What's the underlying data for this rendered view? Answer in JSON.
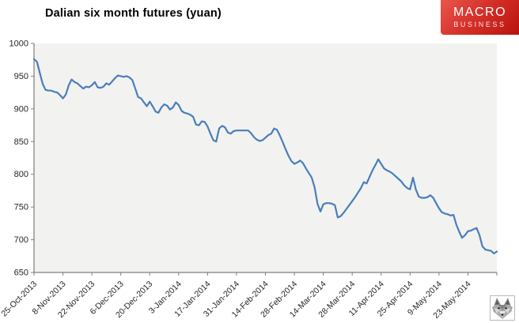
{
  "logo": {
    "line1": "MACRO",
    "line2": "BUSINESS",
    "bg_color": "#c81e16",
    "text_color": "#ffffff"
  },
  "icons": {
    "bottom_right": "wolf-face"
  },
  "chart_data": {
    "type": "line",
    "title": "Dalian six month futures (yuan)",
    "xlabel": "",
    "ylabel": "",
    "ylim": [
      650,
      1000
    ],
    "y_ticks": [
      1000,
      950,
      900,
      850,
      800,
      750,
      700,
      650
    ],
    "x_tick_labels": [
      "25-Oct-2013",
      "8-Nov-2013",
      "22-Nov-2013",
      "6-Dec-2013",
      "20-Dec-2013",
      "3-Jan-2014",
      "17-Jan-2014",
      "31-Jan-2014",
      "14-Feb-2014",
      "28-Feb-2014",
      "14-Mar-2014",
      "28-Mar-2014",
      "11-Apr-2014",
      "25-Apr-2014",
      "9-May-2014",
      "23-May-2014"
    ],
    "x_tick_every": 10,
    "grid": false,
    "legend": "none",
    "plot_bg_color": "#f2f2f1",
    "axis_color": "#7f7f7f",
    "tick_label_color": "#262626",
    "series": [
      {
        "name": "Dalian six month futures (yuan)",
        "color": "#4a7ebb",
        "values": [
          976,
          972,
          955,
          938,
          929,
          928,
          928,
          926,
          925,
          921,
          916,
          922,
          936,
          945,
          941,
          939,
          935,
          931,
          934,
          933,
          936,
          941,
          933,
          932,
          934,
          939,
          937,
          942,
          947,
          951,
          950,
          949,
          950,
          948,
          944,
          931,
          918,
          916,
          910,
          904,
          911,
          904,
          896,
          894,
          902,
          907,
          905,
          899,
          902,
          910,
          906,
          897,
          894,
          893,
          891,
          888,
          876,
          875,
          881,
          880,
          873,
          862,
          852,
          850,
          870,
          874,
          872,
          864,
          862,
          866,
          867,
          867,
          867,
          867,
          867,
          863,
          857,
          853,
          851,
          852,
          856,
          860,
          862,
          870,
          868,
          859,
          849,
          838,
          828,
          820,
          816,
          818,
          821,
          817,
          809,
          802,
          795,
          780,
          755,
          743,
          754,
          756,
          756,
          755,
          753,
          734,
          736,
          741,
          747,
          753,
          759,
          765,
          772,
          779,
          788,
          786,
          796,
          806,
          814,
          823,
          816,
          809,
          806,
          804,
          801,
          797,
          793,
          789,
          783,
          779,
          777,
          795,
          777,
          766,
          764,
          764,
          765,
          768,
          764,
          756,
          748,
          742,
          740,
          739,
          737,
          738,
          723,
          712,
          703,
          707,
          713,
          714,
          716,
          718,
          707,
          690,
          685,
          684,
          683,
          679,
          682
        ]
      }
    ]
  }
}
